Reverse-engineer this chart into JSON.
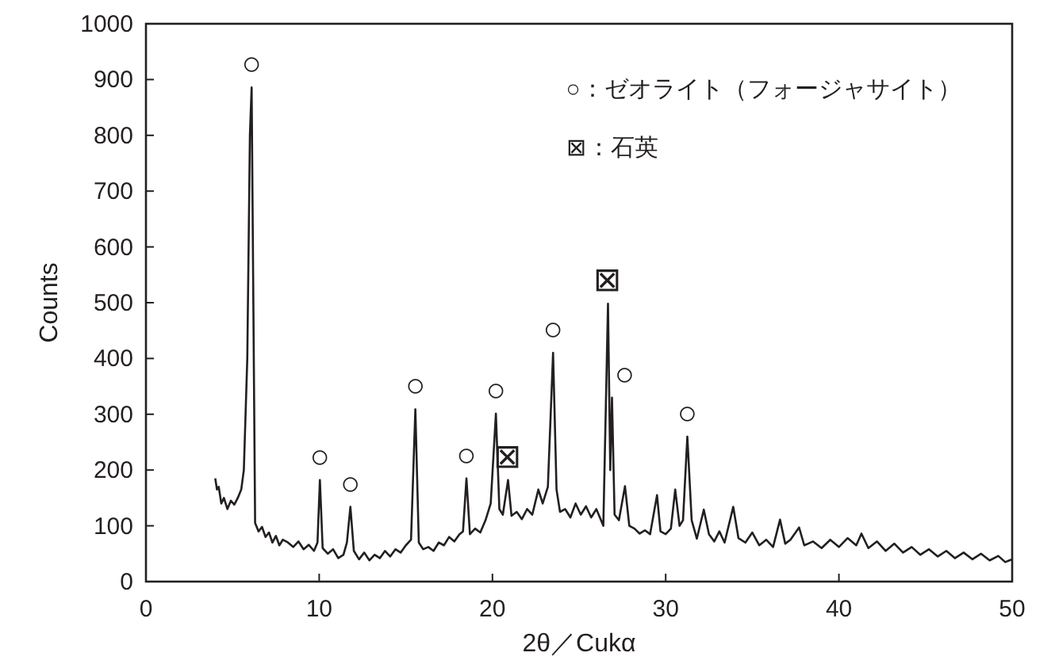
{
  "chart_data": {
    "type": "line",
    "xlabel": "2θ／Cukα",
    "ylabel": "Counts",
    "color": "#231f20",
    "xlim": [
      0,
      50
    ],
    "ylim": [
      0,
      1000
    ],
    "xticks": [
      0,
      10,
      20,
      30,
      40,
      50
    ],
    "yticks": [
      0,
      100,
      200,
      300,
      400,
      500,
      600,
      700,
      800,
      900,
      1000
    ],
    "x": [
      4.0,
      4.1,
      4.2,
      4.35,
      4.5,
      4.7,
      4.9,
      5.1,
      5.3,
      5.5,
      5.65,
      5.85,
      6.0,
      6.1,
      6.2,
      6.3,
      6.5,
      6.7,
      6.9,
      7.1,
      7.3,
      7.5,
      7.7,
      7.9,
      8.2,
      8.5,
      8.8,
      9.1,
      9.4,
      9.7,
      9.9,
      10.04,
      10.2,
      10.5,
      10.8,
      11.1,
      11.4,
      11.6,
      11.8,
      12.0,
      12.3,
      12.6,
      12.9,
      13.2,
      13.5,
      13.8,
      14.1,
      14.4,
      14.7,
      15.0,
      15.3,
      15.55,
      15.75,
      16.0,
      16.3,
      16.6,
      16.9,
      17.2,
      17.5,
      17.8,
      18.1,
      18.3,
      18.5,
      18.7,
      19.0,
      19.3,
      19.6,
      19.9,
      20.2,
      20.4,
      20.6,
      20.9,
      21.1,
      21.4,
      21.7,
      22.0,
      22.3,
      22.65,
      22.9,
      23.2,
      23.5,
      23.7,
      23.9,
      24.2,
      24.5,
      24.8,
      25.1,
      25.4,
      25.7,
      26.0,
      26.4,
      26.67,
      26.8,
      26.9,
      27.05,
      27.3,
      27.65,
      27.9,
      28.2,
      28.5,
      28.8,
      29.1,
      29.5,
      29.7,
      30.0,
      30.3,
      30.55,
      30.8,
      31.0,
      31.25,
      31.5,
      31.8,
      32.2,
      32.5,
      32.8,
      33.1,
      33.4,
      33.9,
      34.2,
      34.6,
      35.0,
      35.4,
      35.8,
      36.2,
      36.6,
      36.9,
      37.2,
      37.7,
      38.0,
      38.5,
      39.0,
      39.5,
      40.0,
      40.5,
      41.0,
      41.3,
      41.7,
      42.2,
      42.7,
      43.2,
      43.7,
      44.2,
      44.7,
      45.2,
      45.7,
      46.2,
      46.7,
      47.2,
      47.7,
      48.2,
      48.7,
      49.2,
      49.6,
      50.0
    ],
    "values": [
      185,
      165,
      170,
      140,
      150,
      130,
      145,
      138,
      150,
      165,
      200,
      400,
      800,
      886,
      500,
      105,
      90,
      98,
      80,
      88,
      70,
      82,
      65,
      75,
      70,
      62,
      72,
      58,
      66,
      55,
      70,
      182,
      60,
      50,
      58,
      42,
      48,
      70,
      134,
      55,
      40,
      52,
      38,
      48,
      42,
      55,
      45,
      58,
      52,
      65,
      75,
      309,
      70,
      58,
      62,
      55,
      70,
      65,
      80,
      72,
      85,
      90,
      185,
      85,
      95,
      88,
      110,
      140,
      301,
      130,
      120,
      182,
      118,
      125,
      112,
      130,
      120,
      165,
      140,
      170,
      410,
      165,
      125,
      130,
      115,
      140,
      120,
      135,
      115,
      130,
      100,
      498,
      200,
      330,
      120,
      110,
      171,
      100,
      95,
      86,
      92,
      85,
      155,
      90,
      85,
      95,
      165,
      100,
      110,
      260,
      110,
      77,
      129,
      85,
      72,
      90,
      70,
      134,
      78,
      70,
      88,
      65,
      75,
      62,
      111,
      68,
      75,
      97,
      65,
      72,
      60,
      75,
      62,
      78,
      65,
      86,
      60,
      72,
      55,
      68,
      52,
      62,
      48,
      58,
      45,
      55,
      42,
      52,
      40,
      50,
      38,
      46,
      35,
      40
    ],
    "annotations": [
      "○：ゼオライト（フォージャサイト）",
      "⊠：石英",
      {
        "text": "○",
        "x": 6.1,
        "y": 886
      },
      {
        "text": "○",
        "x": 10.04,
        "y": 182
      },
      {
        "text": "○",
        "x": 11.8,
        "y": 134
      },
      {
        "text": "○",
        "x": 15.55,
        "y": 309
      },
      {
        "text": "○",
        "x": 18.5,
        "y": 185
      },
      {
        "text": "○",
        "x": 20.2,
        "y": 301
      },
      {
        "text": "⊠",
        "x": 20.9,
        "y": 182
      },
      {
        "text": "○",
        "x": 23.5,
        "y": 410
      },
      {
        "text": "⊠",
        "x": 26.67,
        "y": 498
      },
      {
        "text": "○",
        "x": 26.9,
        "y": 330
      },
      {
        "text": "○",
        "x": 31.25,
        "y": 260
      }
    ]
  }
}
